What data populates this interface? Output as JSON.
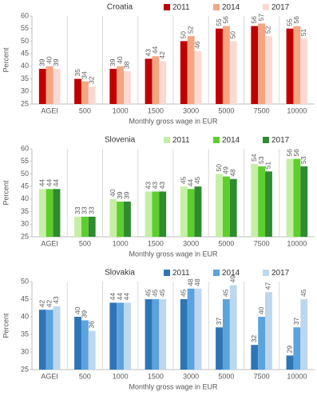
{
  "chart_data": [
    {
      "type": "bar",
      "title": "Croatia",
      "x_label": "Monthly gross wage in EUR",
      "y_label": "Percent",
      "categories": [
        "AGEI",
        "500",
        "1000",
        "1500",
        "3000",
        "5000",
        "7500",
        "10000"
      ],
      "series": [
        {
          "name": "2011",
          "color": "#c00000",
          "values": [
            39,
            35,
            39,
            43,
            50,
            55,
            56,
            55
          ]
        },
        {
          "name": "2014",
          "color": "#f4a582",
          "values": [
            40,
            34,
            40,
            44,
            52,
            56,
            57,
            56
          ]
        },
        {
          "name": "2017",
          "color": "#fbd9d3",
          "values": [
            39,
            32,
            38,
            42,
            46,
            50,
            52,
            51
          ]
        }
      ],
      "ylim": [
        25,
        60
      ],
      "yticks": [
        25,
        30,
        35,
        40,
        45,
        50,
        55,
        60
      ]
    },
    {
      "type": "bar",
      "title": "Slovenia",
      "x_label": "Monthly gross wage in EUR",
      "y_label": "Percent",
      "categories": [
        "AGEI",
        "500",
        "1000",
        "1500",
        "3000",
        "5000",
        "7500",
        "10000"
      ],
      "series": [
        {
          "name": "2011",
          "color": "#c6efa6",
          "values": [
            44,
            33,
            40,
            43,
            45,
            50,
            54,
            56
          ]
        },
        {
          "name": "2014",
          "color": "#5ccf2e",
          "values": [
            44,
            33,
            39,
            43,
            44,
            49,
            53,
            56
          ]
        },
        {
          "name": "2017",
          "color": "#2e8b2e",
          "values": [
            44,
            33,
            39,
            43,
            45,
            48,
            51,
            53
          ]
        }
      ],
      "ylim": [
        25,
        60
      ],
      "yticks": [
        25,
        30,
        35,
        40,
        45,
        50,
        55,
        60
      ]
    },
    {
      "type": "bar",
      "title": "Slovakia",
      "x_label": "Monthly gross wage in EUR",
      "y_label": "Percent",
      "categories": [
        "AGEI",
        "500",
        "1000",
        "1500",
        "3000",
        "5000",
        "7500",
        "10000"
      ],
      "series": [
        {
          "name": "2011",
          "color": "#2e75b6",
          "values": [
            42,
            40,
            44,
            45,
            45,
            37,
            32,
            29
          ]
        },
        {
          "name": "2014",
          "color": "#5ba3de",
          "values": [
            42,
            39,
            44,
            45,
            48,
            45,
            40,
            37
          ]
        },
        {
          "name": "2017",
          "color": "#bdd7ee",
          "values": [
            43,
            36,
            44,
            45,
            48,
            49,
            47,
            45
          ]
        }
      ],
      "ylim": [
        25,
        50
      ],
      "yticks": [
        25,
        30,
        35,
        40,
        45,
        50
      ]
    }
  ]
}
